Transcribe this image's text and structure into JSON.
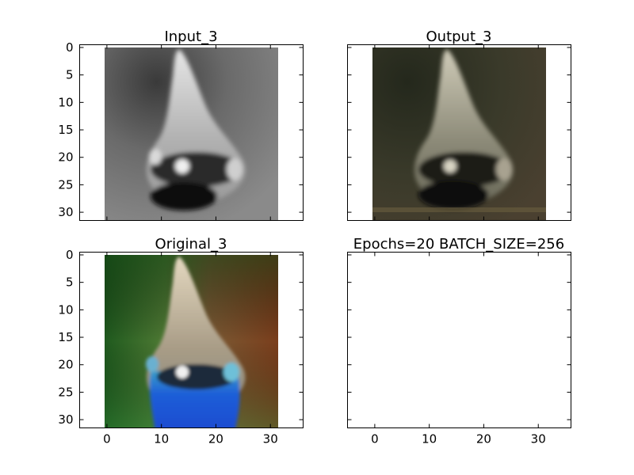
{
  "figure": {
    "background": "#ffffff"
  },
  "chart_data": [
    {
      "type": "image",
      "title": "Input_3",
      "image_size": [
        32,
        32
      ],
      "colormap": "grayscale",
      "xlim": [
        -5,
        36
      ],
      "ylim": [
        31.5,
        -0.5
      ],
      "xticks": [],
      "yticks": [
        0,
        5,
        10,
        15,
        20,
        25,
        30
      ],
      "content": "grayscale image of a bird head (crested, beak up)"
    },
    {
      "type": "image",
      "title": "Output_3",
      "image_size": [
        32,
        32
      ],
      "colormap": "rgb",
      "xlim": [
        -5,
        36
      ],
      "ylim": [
        31.5,
        -0.5
      ],
      "xticks": [],
      "yticks": [],
      "content": "dark, low-saturation colorized reconstruction of the bird head"
    },
    {
      "type": "image",
      "title": "Original_3",
      "image_size": [
        32,
        32
      ],
      "colormap": "rgb",
      "xlim": [
        -5,
        36
      ],
      "ylim": [
        31.5,
        -0.5
      ],
      "xticks": [
        0,
        10,
        20,
        30
      ],
      "yticks": [
        0,
        5,
        10,
        15,
        20,
        25,
        30
      ],
      "content": "color bird head with blue neck, green left background, brown right background"
    },
    {
      "type": "empty",
      "title": "Epochs=20 BATCH_SIZE=256",
      "xlim": [
        -5,
        36
      ],
      "ylim": [
        31.5,
        -0.5
      ],
      "xticks": [
        0,
        10,
        20,
        30
      ],
      "yticks": []
    }
  ]
}
